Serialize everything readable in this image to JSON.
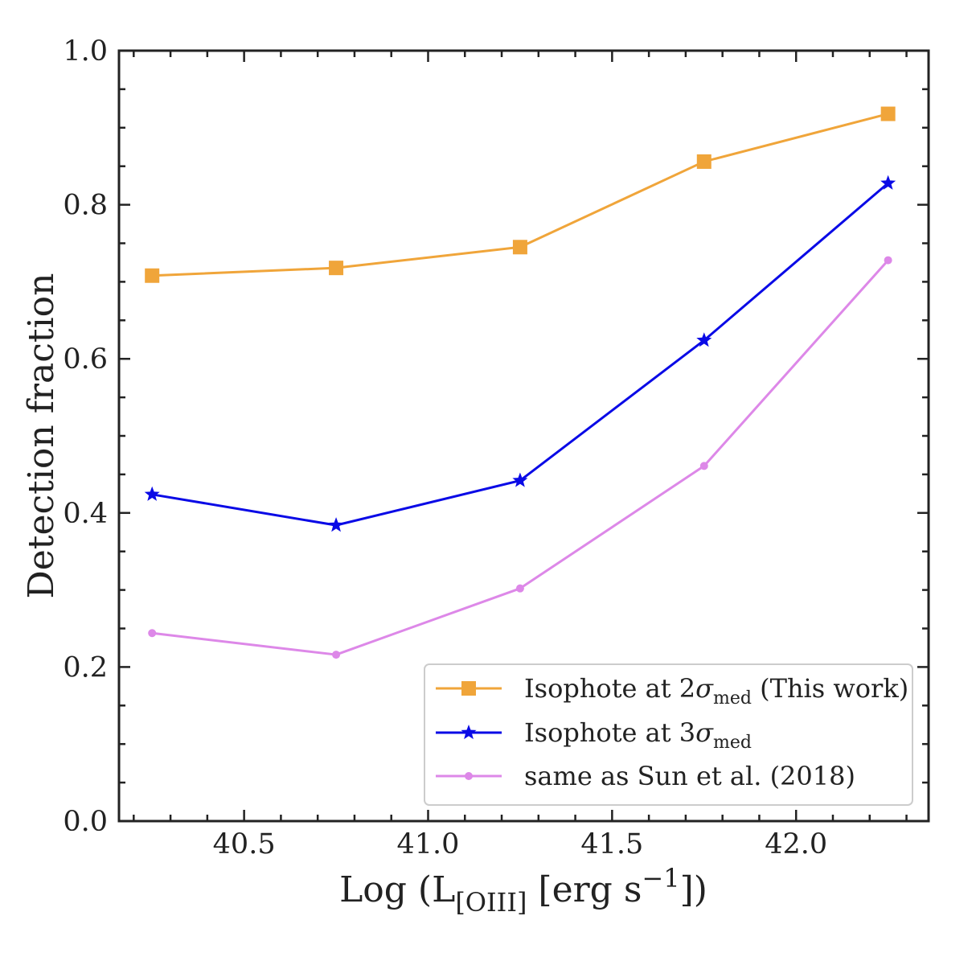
{
  "chart_data": {
    "type": "line",
    "title": "",
    "xlabel": {
      "prefix": "Log (L",
      "sub": "[OIII]",
      "mid": " [erg s",
      "sup": "−1",
      "suffix": "])"
    },
    "ylabel": "Detection fraction",
    "xlim": [
      40.16,
      42.36
    ],
    "ylim": [
      0.0,
      1.0
    ],
    "x_major_ticks": [
      40.5,
      41.0,
      41.5,
      42.0
    ],
    "x_tick_labels": [
      "40.5",
      "41.0",
      "41.5",
      "42.0"
    ],
    "x_minor_step": 0.1,
    "y_major_ticks": [
      0.0,
      0.2,
      0.4,
      0.6,
      0.8,
      1.0
    ],
    "y_tick_labels": [
      "0.0",
      "0.2",
      "0.4",
      "0.6",
      "0.8",
      "1.0"
    ],
    "y_minor_step": 0.05,
    "grid": false,
    "legend_position": "lower-right",
    "x": [
      40.25,
      40.75,
      41.25,
      41.75,
      42.25
    ],
    "series": [
      {
        "name": "isophote-2sigma",
        "label_prefix": "Isophote at 2",
        "label_sigma": "σ",
        "label_sub": "med",
        "label_suffix": " (This work)",
        "color": "#f0a53a",
        "marker": "square",
        "values": [
          0.708,
          0.718,
          0.745,
          0.856,
          0.918
        ]
      },
      {
        "name": "isophote-3sigma",
        "label_prefix": "Isophote at 3",
        "label_sigma": "σ",
        "label_sub": "med",
        "label_suffix": "",
        "color": "#0a0ae6",
        "marker": "star",
        "values": [
          0.424,
          0.384,
          0.442,
          0.624,
          0.828
        ]
      },
      {
        "name": "sun-2018",
        "label_prefix": "same as Sun et al. (2018)",
        "label_sigma": "",
        "label_sub": "",
        "label_suffix": "",
        "color": "#dd88e8",
        "marker": "circle",
        "values": [
          0.244,
          0.216,
          0.302,
          0.461,
          0.728
        ]
      }
    ]
  }
}
